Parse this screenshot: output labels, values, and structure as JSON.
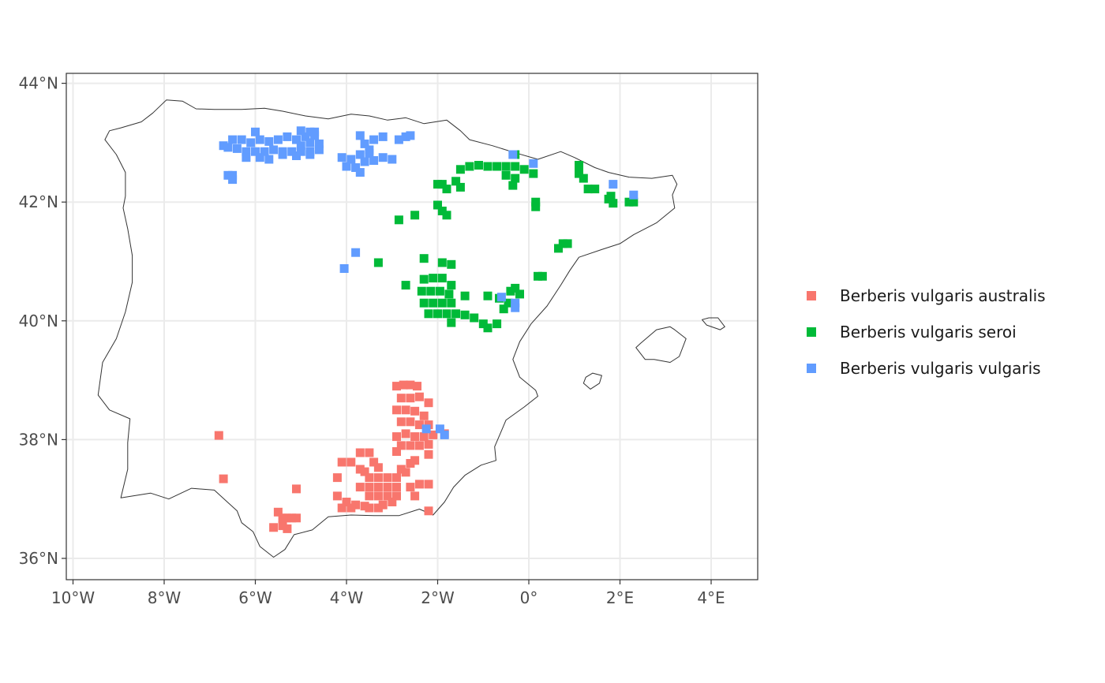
{
  "colors": {
    "australis": "#F8766D",
    "seroi": "#00BA38",
    "vulgaris": "#619CFF",
    "grid": "#ebebeb",
    "outline": "#333333"
  },
  "chart_data": {
    "type": "scatter",
    "title": "",
    "xlabel": "",
    "ylabel": "",
    "xlim": [
      -10.2,
      5.0
    ],
    "ylim": [
      35.65,
      44.2
    ],
    "x_ticks": [
      -10,
      -8,
      -6,
      -4,
      -2,
      0,
      2,
      4
    ],
    "x_tick_labels": [
      "10°W",
      "8°W",
      "6°W",
      "4°W",
      "2°W",
      "0°",
      "2°E",
      "4°E"
    ],
    "y_ticks": [
      36,
      38,
      40,
      42,
      44
    ],
    "y_tick_labels": [
      "36°N",
      "38°N",
      "40°N",
      "42°N",
      "44°N"
    ],
    "grid": true,
    "legend_position": "right",
    "series": [
      {
        "name": "Berberis vulgaris australis",
        "color": "#F8766D",
        "points": [
          [
            -6.8,
            38.07
          ],
          [
            -6.7,
            37.34
          ],
          [
            -5.6,
            36.52
          ],
          [
            -5.4,
            36.55
          ],
          [
            -5.5,
            36.78
          ],
          [
            -5.4,
            36.68
          ],
          [
            -5.3,
            36.68
          ],
          [
            -5.2,
            36.68
          ],
          [
            -5.1,
            36.68
          ],
          [
            -5.3,
            36.5
          ],
          [
            -5.1,
            37.17
          ],
          [
            -4.2,
            37.36
          ],
          [
            -4.1,
            37.62
          ],
          [
            -3.9,
            37.62
          ],
          [
            -3.7,
            37.78
          ],
          [
            -3.5,
            37.78
          ],
          [
            -3.4,
            37.62
          ],
          [
            -3.7,
            37.5
          ],
          [
            -3.6,
            37.46
          ],
          [
            -3.5,
            37.36
          ],
          [
            -3.3,
            37.36
          ],
          [
            -3.1,
            37.36
          ],
          [
            -2.9,
            37.36
          ],
          [
            -3.7,
            37.2
          ],
          [
            -3.5,
            37.2
          ],
          [
            -3.3,
            37.2
          ],
          [
            -3.1,
            37.2
          ],
          [
            -2.9,
            37.2
          ],
          [
            -3.5,
            37.05
          ],
          [
            -3.3,
            37.05
          ],
          [
            -3.1,
            37.05
          ],
          [
            -2.9,
            37.05
          ],
          [
            -4.2,
            37.05
          ],
          [
            -4.0,
            36.95
          ],
          [
            -3.8,
            36.9
          ],
          [
            -4.1,
            36.85
          ],
          [
            -3.9,
            36.85
          ],
          [
            -3.6,
            36.88
          ],
          [
            -3.3,
            36.85
          ],
          [
            -3.2,
            36.9
          ],
          [
            -3.5,
            36.85
          ],
          [
            -3.0,
            36.95
          ],
          [
            -2.8,
            37.5
          ],
          [
            -2.6,
            37.6
          ],
          [
            -2.7,
            37.45
          ],
          [
            -2.6,
            37.2
          ],
          [
            -2.5,
            37.05
          ],
          [
            -2.4,
            37.25
          ],
          [
            -2.2,
            37.25
          ],
          [
            -2.2,
            36.8
          ],
          [
            -2.9,
            37.8
          ],
          [
            -2.8,
            37.9
          ],
          [
            -2.6,
            37.9
          ],
          [
            -2.4,
            37.9
          ],
          [
            -2.2,
            37.92
          ],
          [
            -2.5,
            37.65
          ],
          [
            -2.2,
            37.75
          ],
          [
            -3.3,
            37.53
          ],
          [
            -2.9,
            38.05
          ],
          [
            -2.7,
            38.1
          ],
          [
            -2.5,
            38.05
          ],
          [
            -2.3,
            38.05
          ],
          [
            -2.1,
            38.08
          ],
          [
            -1.85,
            38.1
          ],
          [
            -2.8,
            38.3
          ],
          [
            -2.6,
            38.3
          ],
          [
            -2.4,
            38.25
          ],
          [
            -2.2,
            38.25
          ],
          [
            -2.9,
            38.5
          ],
          [
            -2.7,
            38.5
          ],
          [
            -2.5,
            38.48
          ],
          [
            -2.3,
            38.4
          ],
          [
            -2.2,
            38.62
          ],
          [
            -2.8,
            38.7
          ],
          [
            -2.6,
            38.7
          ],
          [
            -2.4,
            38.72
          ],
          [
            -2.9,
            38.9
          ],
          [
            -2.75,
            38.92
          ],
          [
            -2.6,
            38.92
          ],
          [
            -2.45,
            38.9
          ]
        ]
      },
      {
        "name": "Berberis vulgaris seroi",
        "color": "#00BA38",
        "points": [
          [
            -2.85,
            41.7
          ],
          [
            -2.5,
            41.78
          ],
          [
            -2.0,
            41.95
          ],
          [
            -1.9,
            41.85
          ],
          [
            -1.8,
            41.78
          ],
          [
            -2.3,
            41.05
          ],
          [
            -1.9,
            40.98
          ],
          [
            -1.7,
            40.95
          ],
          [
            -2.7,
            40.6
          ],
          [
            -3.3,
            40.98
          ],
          [
            -2.3,
            40.7
          ],
          [
            -2.1,
            40.72
          ],
          [
            -1.9,
            40.72
          ],
          [
            -1.7,
            40.6
          ],
          [
            -2.35,
            40.5
          ],
          [
            -2.15,
            40.5
          ],
          [
            -1.95,
            40.5
          ],
          [
            -1.75,
            40.45
          ],
          [
            -2.3,
            40.3
          ],
          [
            -2.1,
            40.3
          ],
          [
            -1.9,
            40.3
          ],
          [
            -1.7,
            40.3
          ],
          [
            -2.2,
            40.12
          ],
          [
            -2.0,
            40.12
          ],
          [
            -1.8,
            40.12
          ],
          [
            -1.6,
            40.12
          ],
          [
            -1.4,
            40.42
          ],
          [
            -1.4,
            40.1
          ],
          [
            -1.2,
            40.05
          ],
          [
            -1.0,
            39.95
          ],
          [
            -0.9,
            39.88
          ],
          [
            -0.7,
            39.95
          ],
          [
            -1.7,
            39.97
          ],
          [
            -0.9,
            40.42
          ],
          [
            -0.65,
            40.38
          ],
          [
            -0.45,
            40.3
          ],
          [
            -0.3,
            40.55
          ],
          [
            -0.4,
            40.5
          ],
          [
            -0.2,
            40.45
          ],
          [
            -0.55,
            40.2
          ],
          [
            0.3,
            40.75
          ],
          [
            0.2,
            40.75
          ],
          [
            0.65,
            41.22
          ],
          [
            0.75,
            41.3
          ],
          [
            0.85,
            41.3
          ],
          [
            -1.8,
            42.22
          ],
          [
            -1.6,
            42.35
          ],
          [
            -1.5,
            42.25
          ],
          [
            -1.9,
            42.3
          ],
          [
            -2.0,
            42.3
          ],
          [
            -1.5,
            42.55
          ],
          [
            -1.3,
            42.6
          ],
          [
            -1.1,
            42.62
          ],
          [
            -0.9,
            42.6
          ],
          [
            -0.7,
            42.6
          ],
          [
            -0.5,
            42.6
          ],
          [
            -0.3,
            42.6
          ],
          [
            -0.1,
            42.55
          ],
          [
            0.1,
            42.48
          ],
          [
            -0.5,
            42.45
          ],
          [
            -0.3,
            42.4
          ],
          [
            -0.35,
            42.28
          ],
          [
            -0.3,
            42.8
          ],
          [
            0.15,
            42.0
          ],
          [
            0.15,
            41.92
          ],
          [
            1.1,
            42.62
          ],
          [
            1.1,
            42.48
          ],
          [
            1.2,
            42.4
          ],
          [
            1.3,
            42.22
          ],
          [
            1.45,
            42.22
          ],
          [
            1.75,
            42.05
          ],
          [
            1.85,
            41.98
          ],
          [
            1.8,
            42.1
          ],
          [
            2.2,
            42.0
          ],
          [
            2.3,
            42.0
          ]
        ]
      },
      {
        "name": "Berberis vulgaris vulgaris",
        "color": "#619CFF",
        "points": [
          [
            -6.6,
            42.45
          ],
          [
            -6.5,
            42.45
          ],
          [
            -6.5,
            42.38
          ],
          [
            -6.7,
            42.95
          ],
          [
            -6.6,
            42.92
          ],
          [
            -6.4,
            42.9
          ],
          [
            -6.2,
            42.85
          ],
          [
            -6.0,
            42.85
          ],
          [
            -5.8,
            42.85
          ],
          [
            -5.6,
            42.88
          ],
          [
            -5.4,
            42.85
          ],
          [
            -5.2,
            42.85
          ],
          [
            -5.0,
            42.85
          ],
          [
            -4.8,
            42.85
          ],
          [
            -4.6,
            42.88
          ],
          [
            -6.5,
            43.05
          ],
          [
            -6.3,
            43.05
          ],
          [
            -6.1,
            43.0
          ],
          [
            -5.9,
            43.05
          ],
          [
            -5.7,
            43.02
          ],
          [
            -5.5,
            43.05
          ],
          [
            -5.3,
            43.1
          ],
          [
            -5.1,
            43.05
          ],
          [
            -4.9,
            43.1
          ],
          [
            -4.7,
            43.12
          ],
          [
            -5.0,
            42.95
          ],
          [
            -4.8,
            43.0
          ],
          [
            -4.6,
            42.98
          ],
          [
            -6.2,
            42.75
          ],
          [
            -5.9,
            42.75
          ],
          [
            -5.7,
            42.72
          ],
          [
            -5.4,
            42.8
          ],
          [
            -5.1,
            42.78
          ],
          [
            -4.8,
            42.8
          ],
          [
            -6.0,
            43.18
          ],
          [
            -5.0,
            43.2
          ],
          [
            -4.8,
            43.18
          ],
          [
            -4.7,
            43.18
          ],
          [
            -4.1,
            42.75
          ],
          [
            -3.9,
            42.72
          ],
          [
            -3.7,
            42.8
          ],
          [
            -3.5,
            42.82
          ],
          [
            -3.6,
            42.68
          ],
          [
            -3.4,
            42.7
          ],
          [
            -3.2,
            42.75
          ],
          [
            -3.0,
            42.72
          ],
          [
            -4.0,
            42.6
          ],
          [
            -3.8,
            42.58
          ],
          [
            -3.7,
            42.5
          ],
          [
            -3.4,
            43.05
          ],
          [
            -3.2,
            43.1
          ],
          [
            -3.6,
            42.98
          ],
          [
            -2.85,
            43.05
          ],
          [
            -2.7,
            43.1
          ],
          [
            -2.6,
            43.12
          ],
          [
            -3.7,
            43.12
          ],
          [
            -3.5,
            42.88
          ],
          [
            -3.8,
            41.15
          ],
          [
            -4.05,
            40.88
          ],
          [
            -0.6,
            40.4
          ],
          [
            -0.3,
            40.3
          ],
          [
            -0.3,
            40.22
          ],
          [
            -0.35,
            42.8
          ],
          [
            0.1,
            42.65
          ],
          [
            1.85,
            42.3
          ],
          [
            2.3,
            42.12
          ],
          [
            -2.25,
            38.18
          ],
          [
            -1.95,
            38.18
          ],
          [
            -1.85,
            38.08
          ]
        ]
      }
    ]
  },
  "legend": {
    "items": [
      {
        "label": "Berberis vulgaris australis",
        "color": "#F8766D"
      },
      {
        "label": "Berberis vulgaris seroi",
        "color": "#00BA38"
      },
      {
        "label": "Berberis vulgaris vulgaris",
        "color": "#619CFF"
      }
    ]
  }
}
